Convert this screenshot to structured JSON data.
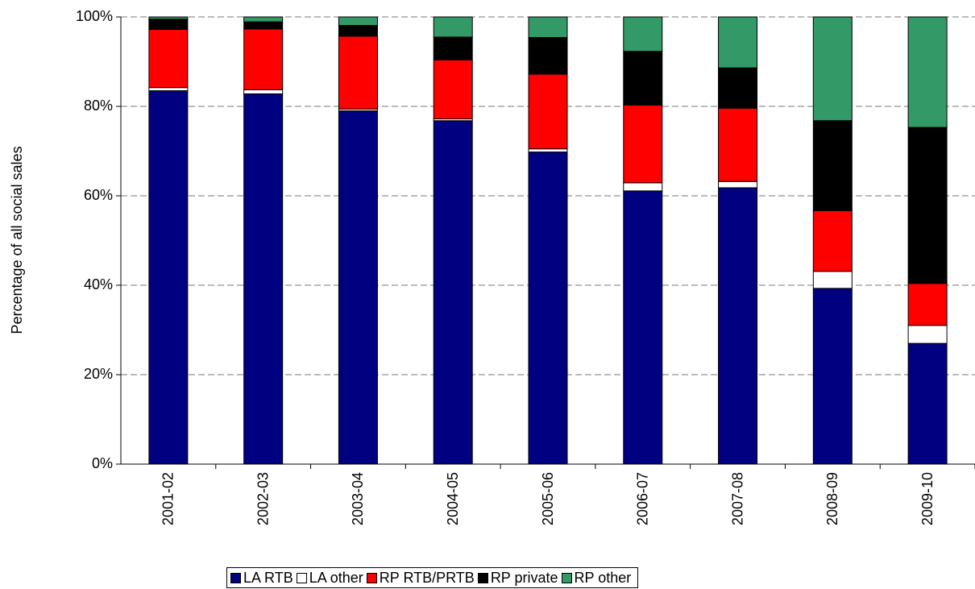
{
  "chart_data": {
    "type": "stacked_bar",
    "y_label": "Percentage of all social sales",
    "categories": [
      "2001-02",
      "2002-03",
      "2003-04",
      "2004-05",
      "2005-06",
      "2006-07",
      "2007-08",
      "2008-09",
      "2009-10"
    ],
    "series": [
      {
        "name": "LA RTB",
        "color": "#000080",
        "values": [
          83.5,
          82.8,
          79.0,
          76.8,
          69.8,
          61.1,
          61.8,
          39.3,
          27.0
        ]
      },
      {
        "name": "LA other",
        "color": "#ffffff",
        "values": [
          0.7,
          0.9,
          0.4,
          0.4,
          0.7,
          1.8,
          1.4,
          3.8,
          4.0
        ]
      },
      {
        "name": "RP RTB/PRTB",
        "color": "#ff0000",
        "values": [
          13.0,
          13.6,
          16.3,
          13.2,
          16.7,
          17.4,
          16.4,
          13.6,
          9.4
        ]
      },
      {
        "name": "RP private",
        "color": "#000000",
        "values": [
          2.3,
          1.6,
          2.4,
          5.1,
          8.2,
          12.0,
          9.0,
          20.1,
          34.9
        ]
      },
      {
        "name": "RP other",
        "color": "#339966",
        "values": [
          0.5,
          1.1,
          1.9,
          4.5,
          4.6,
          7.7,
          11.4,
          23.2,
          24.7
        ]
      }
    ],
    "ylim": [
      0,
      100
    ],
    "yticks": [
      {
        "value": 0,
        "label": "0%"
      },
      {
        "value": 20,
        "label": "20%"
      },
      {
        "value": 40,
        "label": "40%"
      },
      {
        "value": 60,
        "label": "60%"
      },
      {
        "value": 80,
        "label": "80%"
      },
      {
        "value": 100,
        "label": "100%"
      }
    ],
    "grid": true
  }
}
